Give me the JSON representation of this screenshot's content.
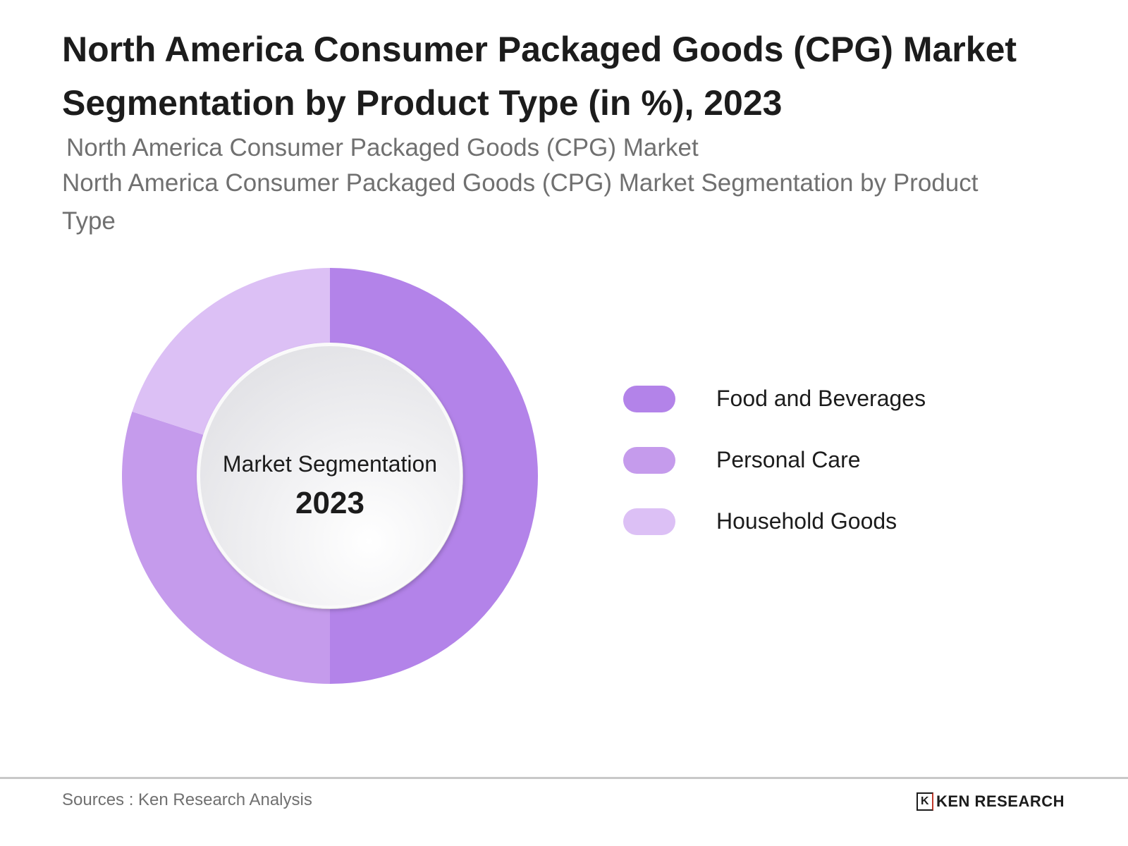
{
  "title": "North America Consumer Packaged Goods (CPG) Market Segmentation by Product Type (in %), 2023",
  "subtitle_line1": "North America Consumer Packaged Goods (CPG) Market",
  "subtitle_line2": "North America Consumer Packaged Goods (CPG) Market Segmentation by Product Type",
  "chart_data": {
    "type": "pie",
    "variant": "donut",
    "center_label": "Market Segmentation",
    "center_value": "2023",
    "legend_position": "right",
    "categories": [
      "Food and Beverages",
      "Personal Care",
      "Household Goods"
    ],
    "values": [
      50,
      30,
      20
    ],
    "colors": [
      "#b383e9",
      "#c59bec",
      "#dcc0f5"
    ]
  },
  "footer": {
    "source": "Sources : Ken Research Analysis",
    "logo_text": "KEN RESEARCH"
  }
}
